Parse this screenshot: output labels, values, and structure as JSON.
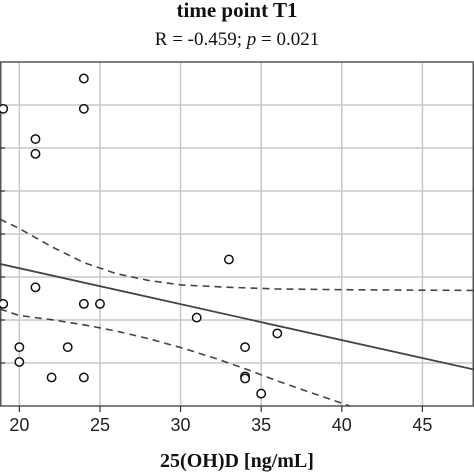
{
  "chart_data": {
    "type": "scatter",
    "title": "time point T1",
    "subtitle": {
      "r_text": "R = -0.459;",
      "p_symbol": "p",
      "p_text": " = 0.021"
    },
    "xlabel": "25(OH)D [ng/mL]",
    "ylabel": "",
    "xlim": [
      18.8,
      48.2
    ],
    "ylim": [
      0,
      1
    ],
    "x_ticks": [
      20,
      25,
      30,
      35,
      40,
      45
    ],
    "x_tick_labels": [
      "20",
      "25",
      "30",
      "35",
      "40",
      "45"
    ],
    "grid": true,
    "points": [
      {
        "x": 24,
        "y": 0.952
      },
      {
        "x": 19,
        "y": 0.864
      },
      {
        "x": 24,
        "y": 0.864
      },
      {
        "x": 21,
        "y": 0.776
      },
      {
        "x": 21,
        "y": 0.733
      },
      {
        "x": 33,
        "y": 0.426
      },
      {
        "x": 21,
        "y": 0.345
      },
      {
        "x": 19,
        "y": 0.297
      },
      {
        "x": 24,
        "y": 0.297
      },
      {
        "x": 25,
        "y": 0.297
      },
      {
        "x": 31,
        "y": 0.257
      },
      {
        "x": 36,
        "y": 0.211
      },
      {
        "x": 20,
        "y": 0.171
      },
      {
        "x": 23,
        "y": 0.171
      },
      {
        "x": 34,
        "y": 0.171
      },
      {
        "x": 20,
        "y": 0.128
      },
      {
        "x": 34,
        "y": 0.086
      },
      {
        "x": 22,
        "y": 0.083
      },
      {
        "x": 24,
        "y": 0.083
      },
      {
        "x": 34,
        "y": 0.08
      },
      {
        "x": 35,
        "y": 0.036
      }
    ],
    "regression": {
      "x": [
        18.8,
        48.2
      ],
      "y": [
        0.413,
        0.106
      ]
    },
    "ci_upper": {
      "x": [
        18.8,
        20,
        22,
        24,
        26,
        28,
        30,
        33,
        36,
        40,
        44,
        48.2
      ],
      "y": [
        0.543,
        0.516,
        0.463,
        0.417,
        0.385,
        0.365,
        0.352,
        0.345,
        0.34,
        0.338,
        0.337,
        0.336
      ]
    },
    "ci_lower": {
      "x": [
        18.8,
        20,
        22,
        24,
        26,
        28,
        30,
        32,
        34,
        36,
        38,
        40,
        42
      ],
      "y": [
        0.282,
        0.263,
        0.251,
        0.236,
        0.218,
        0.196,
        0.17,
        0.141,
        0.108,
        0.073,
        0.04,
        0.008,
        -0.025
      ]
    }
  }
}
